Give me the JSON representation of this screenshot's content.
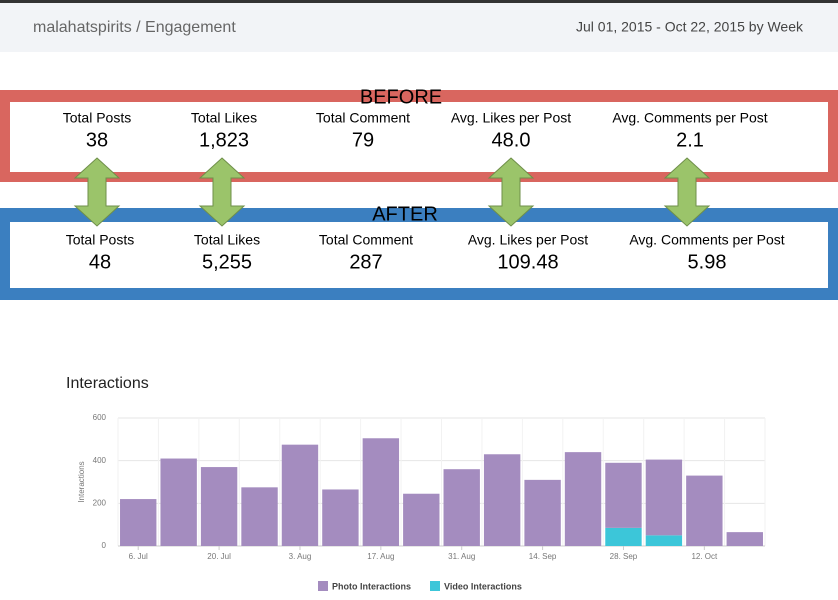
{
  "header": {
    "title": "malahatspirits / Engagement",
    "date_range": "Jul 01, 2015 - Oct 22, 2015 by Week"
  },
  "before": {
    "label": "BEFORE",
    "stats": [
      {
        "label": "Total Posts",
        "value": "38"
      },
      {
        "label": "Total Likes",
        "value": "1,823"
      },
      {
        "label": "Total Comment",
        "value": "79"
      },
      {
        "label": "Avg. Likes per Post",
        "value": "48.0"
      },
      {
        "label": "Avg. Comments per Post",
        "value": "2.1"
      }
    ]
  },
  "after": {
    "label": "AFTER",
    "stats": [
      {
        "label": "Total Posts",
        "value": "48"
      },
      {
        "label": "Total Likes",
        "value": "5,255"
      },
      {
        "label": "Total Comment",
        "value": "287"
      },
      {
        "label": "Avg. Likes per Post",
        "value": "109.48"
      },
      {
        "label": "Avg. Comments per Post",
        "value": "5.98"
      }
    ]
  },
  "chart_data": {
    "type": "stacked_bar",
    "title": "Interactions",
    "ylabel": "Interactions",
    "categories": [
      "6. Jul",
      null,
      "20. Jul",
      null,
      "3. Aug",
      null,
      "17. Aug",
      null,
      "31. Aug",
      null,
      "14. Sep",
      null,
      "28. Sep",
      null,
      "12. Oct",
      null
    ],
    "series": [
      {
        "name": "Photo Interactions",
        "color": "#a48cbf",
        "values": [
          220,
          410,
          370,
          275,
          475,
          265,
          505,
          245,
          360,
          430,
          310,
          440,
          305,
          355,
          330,
          65
        ]
      },
      {
        "name": "Video Interactions",
        "color": "#3cc6d9",
        "values": [
          0,
          0,
          0,
          0,
          0,
          0,
          0,
          0,
          0,
          0,
          0,
          0,
          85,
          50,
          0,
          0
        ]
      }
    ],
    "ylim": [
      0,
      600
    ],
    "yticks": [
      0,
      200,
      400,
      600
    ],
    "grid": true,
    "legend": "bottom"
  }
}
